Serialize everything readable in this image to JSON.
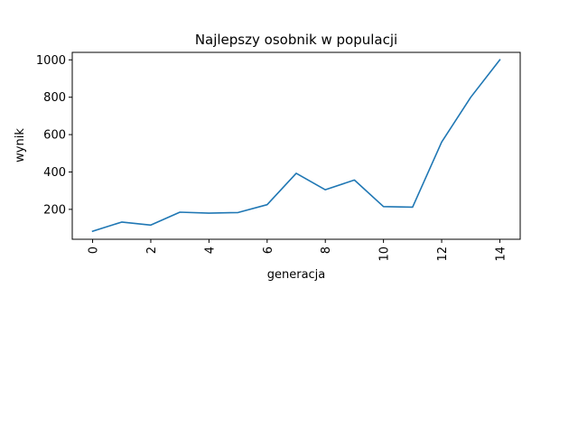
{
  "chart_data": {
    "type": "line",
    "title": "Najlepszy osobnik w populacji",
    "xlabel": "generacja",
    "ylabel": "wynik",
    "xlim": [
      -0.7,
      14.7
    ],
    "ylim": [
      40,
      1040
    ],
    "xticks": [
      0,
      2,
      4,
      6,
      8,
      10,
      12,
      14
    ],
    "yticks": [
      200,
      400,
      600,
      800,
      1000
    ],
    "x_tick_rotation": 90,
    "grid": false,
    "line_color": "#1f77b4",
    "series": [
      {
        "x": [
          0,
          1,
          2,
          3,
          4,
          5,
          6,
          7,
          8,
          9,
          10,
          11,
          12,
          13,
          14
        ],
        "values": [
          83,
          132,
          116,
          185,
          180,
          183,
          225,
          393,
          305,
          357,
          215,
          212,
          560,
          800,
          1000
        ]
      }
    ]
  }
}
